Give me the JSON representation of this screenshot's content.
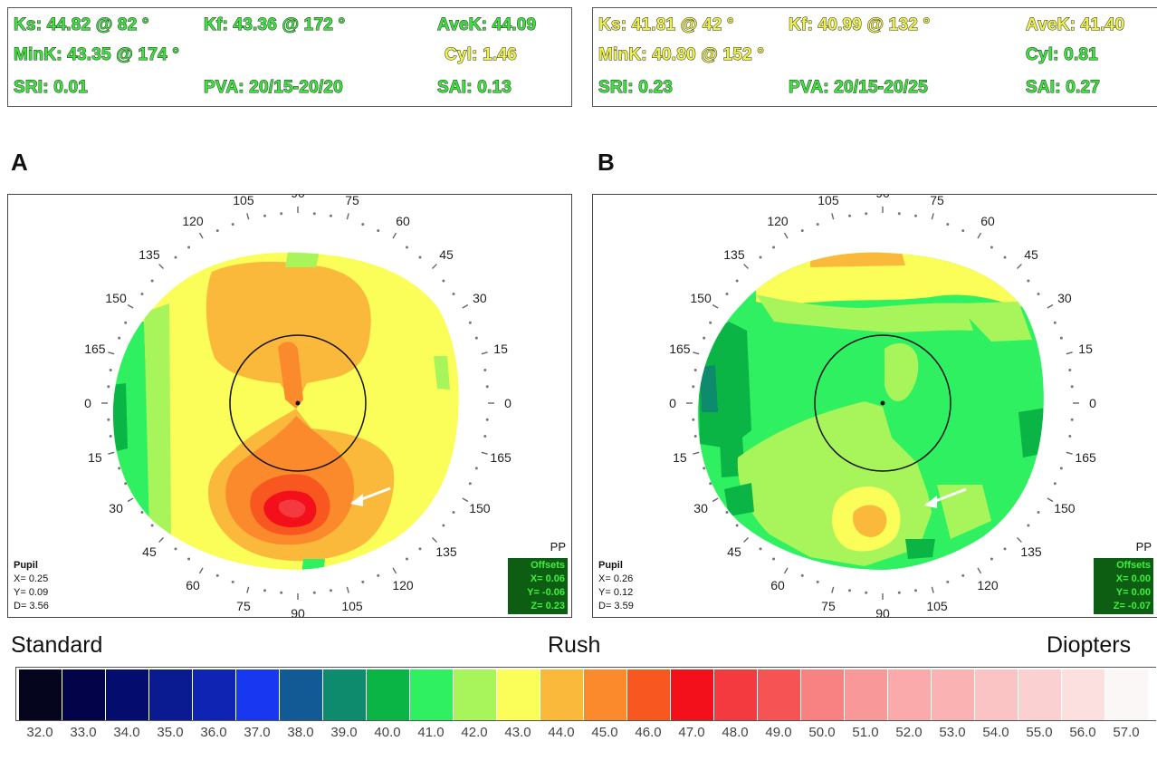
{
  "panels": [
    {
      "letter": "A",
      "keratometry": {
        "ks": "Ks: 44.82 @  82 °",
        "kf": "Kf: 43.36 @ 172 °",
        "avek": "AveK: 44.09",
        "mink": "MinK: 43.35 @ 174 °",
        "cyl": "Cyl:  1.46",
        "sri": "SRI: 0.01",
        "pva": "PVA: 20/15-20/20",
        "sai": "SAI: 0.13"
      },
      "pupil": {
        "title": "Pupil",
        "x": "X=  0.25",
        "y": "Y=  0.09",
        "d": "D=  3.56"
      },
      "offsets": {
        "title": "Offsets",
        "x": "X=  0.06",
        "y": "Y= -0.06",
        "z": "Z=  0.23"
      },
      "pp": "PP",
      "description": "central bowtie with inferior steepening (arrow)"
    },
    {
      "letter": "B",
      "keratometry": {
        "ks": "Ks: 41.81 @  42 °",
        "kf": "Kf: 40.99 @ 132 °",
        "avek": "AveK: 41.40",
        "mink": "MinK: 40.80 @ 152 °",
        "cyl": "Cyl:  0.81",
        "sri": "SRI: 0.23",
        "pva": "PVA: 20/15-20/25",
        "sai": "SAI: 0.27"
      },
      "pupil": {
        "title": "Pupil",
        "x": "X=  0.26",
        "y": "Y=  0.12",
        "d": "D=  3.59"
      },
      "offsets": {
        "title": "Offsets",
        "x": "X=  0.00",
        "y": "Y=  0.00",
        "z": "Z= -0.07"
      },
      "pp": "PP",
      "description": "flatter cornea with inferior island (arrow)"
    }
  ],
  "axis_labels_top": [
    "120",
    "105",
    "90",
    "75",
    "60",
    "135",
    "45",
    "150",
    "30",
    "165",
    "15",
    "0",
    "0"
  ],
  "axis_labels_bottom": [
    "15",
    "165",
    "30",
    "150",
    "45",
    "135",
    "60",
    "120",
    "75",
    "105",
    "90"
  ],
  "modes": {
    "left": "Standard",
    "center": "Rush",
    "right": "Diopters"
  },
  "scale": {
    "values": [
      "32.0",
      "33.0",
      "34.0",
      "35.0",
      "36.0",
      "37.0",
      "38.0",
      "39.0",
      "40.0",
      "41.0",
      "42.0",
      "43.0",
      "44.0",
      "45.0",
      "46.0",
      "47.0",
      "48.0",
      "49.0",
      "50.0",
      "51.0",
      "52.0",
      "53.0",
      "54.0",
      "55.0",
      "56.0",
      "57.0"
    ],
    "colors": [
      "#05051e",
      "#03034a",
      "#040d6e",
      "#0a1a90",
      "#1024b3",
      "#1738f0",
      "#115a96",
      "#0e8a6c",
      "#0ab545",
      "#2ef060",
      "#a7f55a",
      "#fbfd59",
      "#fbb93c",
      "#fb8a2c",
      "#f85820",
      "#f3101b",
      "#f43a3f",
      "#f65454",
      "#f88282",
      "#f99898",
      "#faaaaa",
      "#fab2b2",
      "#fbc4c4",
      "#fbd0d0",
      "#fce0e0",
      "#fcf7f7"
    ]
  },
  "colors": {
    "green_text": "#3de33d",
    "yellow_text": "#eef24a",
    "offsets_bg": "#0d5e12"
  }
}
